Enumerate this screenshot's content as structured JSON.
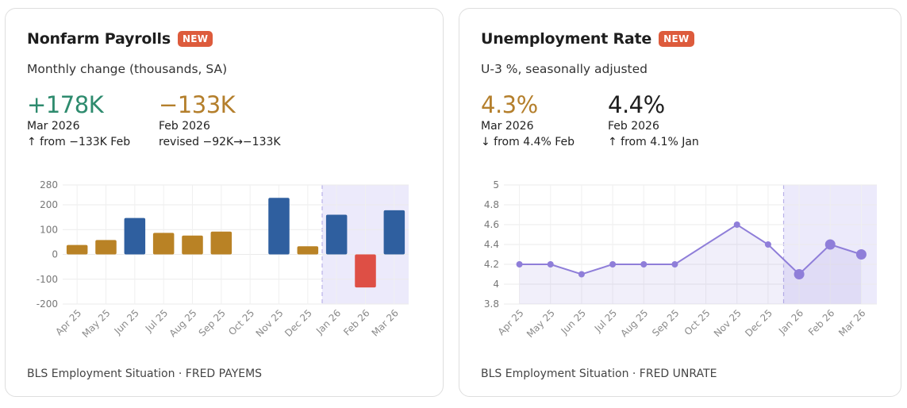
{
  "colors": {
    "positive": "#2e8b6e",
    "negative": "#b47f2c",
    "bar_gold": "#b98225",
    "bar_blue": "#2f5f9f",
    "bar_red": "#de4f45",
    "line": "#8f7ed9",
    "highlight": "#eceafb"
  },
  "left": {
    "title": "Nonfarm Payrolls",
    "badge": "NEW",
    "subtitle": "Monthly change (thousands, SA)",
    "stat1": {
      "value": "+178K",
      "date": "Mar 2026",
      "note": "↑ from −133K Feb"
    },
    "stat2": {
      "value": "−133K",
      "date": "Feb 2026",
      "note": "revised −92K→−133K"
    },
    "source": "BLS Employment Situation · FRED PAYEMS"
  },
  "right": {
    "title": "Unemployment Rate",
    "badge": "NEW",
    "subtitle": "U-3 %, seasonally adjusted",
    "stat1": {
      "value": "4.3%",
      "date": "Mar 2026",
      "note": "↓ from 4.4% Feb"
    },
    "stat2": {
      "value": "4.4%",
      "date": "Feb 2026",
      "note": "↑ from 4.1% Jan"
    },
    "source": "BLS Employment Situation · FRED UNRATE"
  },
  "chart_data": [
    {
      "type": "bar",
      "categories": [
        "Apr 25",
        "May 25",
        "Jun 25",
        "Jul 25",
        "Aug 25",
        "Sep 25",
        "Oct 25",
        "Nov 25",
        "Dec 25",
        "Jan 26",
        "Feb 26",
        "Mar 26"
      ],
      "values": [
        38,
        58,
        147,
        87,
        76,
        92,
        null,
        228,
        33,
        160,
        -133,
        178
      ],
      "bar_colors": [
        "gold",
        "gold",
        "blue",
        "gold",
        "gold",
        "gold",
        null,
        "blue",
        "gold",
        "blue",
        "red",
        "blue"
      ],
      "yticks": [
        280,
        200,
        100,
        0,
        -100,
        -200
      ],
      "ylim": [
        -200,
        280
      ],
      "highlight_from": "Jan 26",
      "grid": true
    },
    {
      "type": "line",
      "categories": [
        "Apr 25",
        "May 25",
        "Jun 25",
        "Jul 25",
        "Aug 25",
        "Sep 25",
        "Oct 25",
        "Nov 25",
        "Dec 25",
        "Jan 26",
        "Feb 26",
        "Mar 26"
      ],
      "values": [
        4.2,
        4.2,
        4.1,
        4.2,
        4.2,
        4.2,
        null,
        4.6,
        4.4,
        4.1,
        4.4,
        4.3
      ],
      "yticks": [
        5.0,
        4.8,
        4.6,
        4.4,
        4.2,
        4.0,
        3.8
      ],
      "ylim": [
        3.8,
        5.0
      ],
      "highlight_from": "Jan 26",
      "grid": true
    }
  ]
}
